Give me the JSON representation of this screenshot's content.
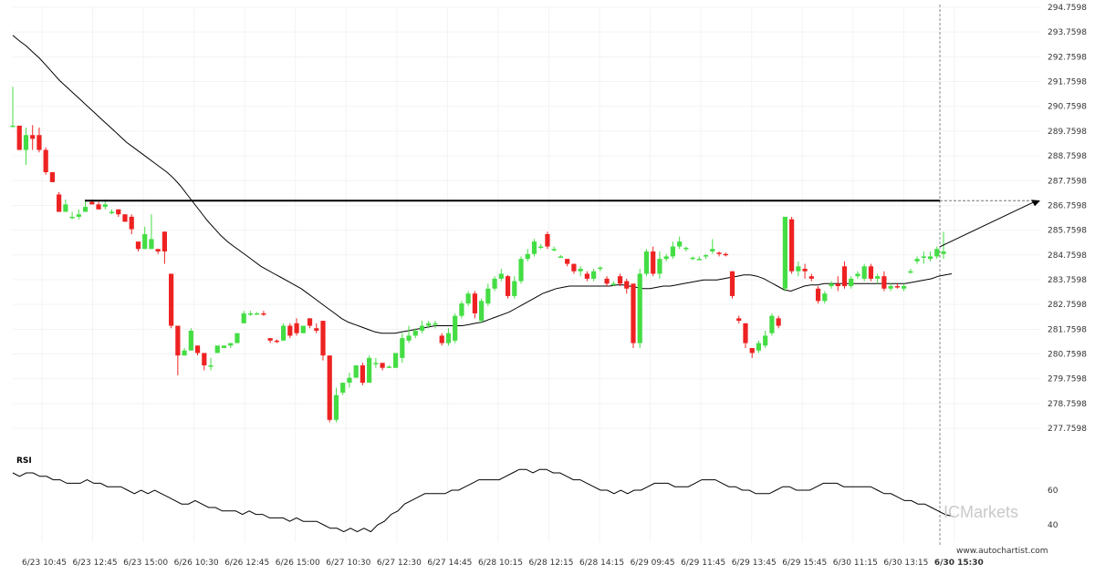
{
  "watermark": "ICMarkets",
  "website": "www.autochartist.com",
  "chart_data": {
    "type": "candlestick",
    "y_ticks": [
      "294.7598",
      "293.7598",
      "292.7598",
      "291.7598",
      "290.7598",
      "289.7598",
      "288.7598",
      "287.7598",
      "286.7598",
      "285.7598",
      "284.7598",
      "283.7598",
      "282.7598",
      "281.7598",
      "280.7598",
      "279.7598",
      "278.7598",
      "277.7598"
    ],
    "ylim": [
      277.1,
      294.76
    ],
    "x_ticks": [
      "6/23 10:45",
      "6/23 12:45",
      "6/23 15:00",
      "6/26 10:30",
      "6/26 12:45",
      "6/26 15:00",
      "6/27 10:30",
      "6/27 12:30",
      "6/27 14:45",
      "6/28 10:15",
      "6/28 12:15",
      "6/28 14:15",
      "6/29 09:45",
      "6/29 11:45",
      "6/29 13:45",
      "6/29 15:45",
      "6/30 11:15",
      "6/30 13:15",
      "6/30 15:30"
    ],
    "resistance_level": 286.95,
    "projection": {
      "from": 285.09,
      "to": 286.95
    },
    "candles": [
      [
        289.98,
        291.55,
        289.98,
        289.98
      ],
      [
        289.98,
        289.9,
        289.0,
        289.0
      ],
      [
        289.0,
        289.9,
        288.4,
        289.6
      ],
      [
        289.6,
        290.0,
        289.0,
        289.45
      ],
      [
        289.6,
        289.9,
        288.9,
        289.0
      ],
      [
        289.0,
        289.1,
        288.0,
        288.1
      ],
      [
        288.1,
        288.1,
        287.7,
        287.7
      ],
      [
        287.2,
        287.3,
        286.5,
        286.5
      ],
      [
        286.5,
        287.0,
        286.5,
        286.8
      ],
      [
        286.3,
        286.5,
        286.2,
        286.3
      ],
      [
        286.3,
        286.6,
        286.2,
        286.4
      ],
      [
        286.5,
        287.0,
        286.5,
        286.7
      ],
      [
        286.9,
        287.0,
        286.8,
        286.8
      ],
      [
        286.8,
        286.9,
        286.6,
        286.6
      ],
      [
        286.7,
        287.0,
        286.6,
        286.8
      ],
      [
        286.5,
        286.6,
        286.4,
        286.5
      ],
      [
        286.6,
        286.6,
        286.3,
        286.4
      ],
      [
        286.4,
        286.4,
        286.1,
        286.1
      ],
      [
        286.3,
        286.4,
        285.6,
        285.8
      ],
      [
        285.3,
        285.3,
        284.9,
        285.0
      ],
      [
        285.0,
        285.9,
        285.0,
        285.6
      ],
      [
        285.0,
        286.4,
        285.0,
        285.4
      ],
      [
        285.0,
        285.0,
        284.8,
        284.9
      ],
      [
        285.7,
        285.7,
        284.4,
        284.9
      ],
      [
        284.0,
        284.0,
        281.8,
        281.9
      ],
      [
        281.9,
        281.9,
        279.9,
        280.7
      ],
      [
        280.7,
        281.0,
        280.7,
        280.9
      ],
      [
        280.9,
        281.8,
        280.9,
        281.7
      ],
      [
        281.1,
        281.1,
        280.7,
        280.8
      ],
      [
        280.8,
        280.8,
        280.1,
        280.3
      ],
      [
        280.3,
        280.6,
        280.1,
        280.3
      ],
      [
        280.8,
        281.1,
        280.8,
        281.1
      ],
      [
        281.0,
        281.1,
        281.0,
        281.1
      ],
      [
        281.1,
        281.2,
        281.0,
        281.2
      ],
      [
        281.2,
        281.6,
        281.2,
        281.6
      ],
      [
        282.0,
        282.5,
        282.0,
        282.4
      ],
      [
        282.4,
        282.5,
        282.3,
        282.4
      ],
      [
        282.4,
        282.45,
        282.35,
        282.4
      ],
      [
        282.4,
        282.5,
        282.3,
        282.35
      ],
      [
        281.4,
        281.4,
        281.2,
        281.3
      ],
      [
        281.3,
        281.35,
        281.2,
        281.25
      ],
      [
        281.3,
        282.0,
        281.3,
        281.9
      ],
      [
        281.9,
        282.0,
        281.4,
        281.5
      ],
      [
        282.0,
        282.2,
        281.5,
        281.6
      ],
      [
        281.6,
        281.9,
        281.6,
        281.9
      ],
      [
        282.2,
        282.2,
        281.8,
        281.9
      ],
      [
        281.8,
        282.0,
        281.6,
        281.7
      ],
      [
        282.1,
        282.1,
        280.5,
        280.7
      ],
      [
        280.7,
        280.7,
        278.0,
        278.1
      ],
      [
        278.1,
        279.4,
        278.0,
        279.1
      ],
      [
        279.2,
        279.6,
        279.1,
        279.6
      ],
      [
        279.6,
        280.0,
        279.4,
        279.8
      ],
      [
        279.8,
        280.3,
        279.8,
        280.3
      ],
      [
        280.3,
        280.4,
        279.5,
        279.6
      ],
      [
        279.6,
        280.7,
        279.6,
        280.6
      ],
      [
        280.4,
        280.6,
        280.2,
        280.4
      ],
      [
        280.4,
        280.4,
        280.1,
        280.2
      ],
      [
        280.2,
        280.3,
        280.2,
        280.25
      ],
      [
        280.2,
        280.8,
        280.2,
        280.8
      ],
      [
        280.6,
        281.6,
        280.4,
        281.4
      ],
      [
        281.3,
        281.9,
        281.2,
        281.5
      ],
      [
        281.5,
        281.8,
        281.4,
        281.7
      ],
      [
        281.7,
        282.1,
        281.6,
        281.9
      ],
      [
        281.9,
        282.1,
        281.8,
        282.0
      ],
      [
        282.0,
        282.1,
        281.8,
        282.0
      ],
      [
        281.5,
        281.6,
        281.1,
        281.2
      ],
      [
        281.2,
        281.8,
        281.1,
        281.6
      ],
      [
        281.3,
        282.4,
        281.2,
        282.3
      ],
      [
        282.3,
        282.9,
        282.2,
        282.8
      ],
      [
        282.8,
        283.3,
        282.7,
        283.2
      ],
      [
        283.2,
        283.3,
        282.2,
        282.4
      ],
      [
        282.1,
        283.0,
        282.0,
        282.9
      ],
      [
        282.8,
        283.6,
        282.7,
        283.4
      ],
      [
        283.4,
        283.9,
        283.3,
        283.8
      ],
      [
        283.8,
        284.2,
        283.7,
        284.0
      ],
      [
        283.9,
        283.95,
        283.0,
        283.1
      ],
      [
        283.1,
        283.9,
        283.0,
        283.7
      ],
      [
        283.7,
        284.7,
        283.6,
        284.6
      ],
      [
        284.6,
        285.0,
        284.5,
        284.8
      ],
      [
        284.8,
        285.4,
        284.7,
        285.3
      ],
      [
        285.1,
        285.2,
        285.0,
        285.1
      ],
      [
        285.6,
        285.7,
        285.0,
        285.1
      ],
      [
        285.0,
        285.1,
        284.9,
        285.0
      ],
      [
        284.7,
        284.75,
        284.65,
        284.7
      ],
      [
        284.6,
        284.6,
        284.3,
        284.4
      ],
      [
        284.4,
        284.4,
        284.0,
        284.1
      ],
      [
        284.1,
        284.3,
        283.9,
        284.2
      ],
      [
        284.0,
        284.1,
        283.7,
        283.8
      ],
      [
        283.8,
        284.2,
        283.7,
        284.1
      ],
      [
        284.2,
        284.3,
        284.1,
        284.25
      ],
      [
        283.8,
        283.9,
        283.5,
        283.6
      ],
      [
        283.6,
        283.7,
        283.5,
        283.6
      ],
      [
        283.9,
        284.0,
        283.5,
        283.6
      ],
      [
        283.7,
        283.8,
        283.2,
        283.4
      ],
      [
        283.6,
        283.6,
        281.0,
        281.2
      ],
      [
        281.2,
        284.2,
        281.0,
        284.0
      ],
      [
        284.0,
        285.0,
        283.9,
        284.9
      ],
      [
        284.9,
        285.1,
        283.9,
        284.0
      ],
      [
        284.0,
        284.9,
        283.8,
        284.6
      ],
      [
        284.6,
        284.8,
        284.5,
        284.7
      ],
      [
        284.7,
        285.3,
        284.6,
        285.1
      ],
      [
        285.1,
        285.5,
        285.0,
        285.3
      ],
      [
        285.0,
        285.1,
        284.9,
        285.05
      ],
      [
        284.6,
        284.7,
        284.55,
        284.65
      ],
      [
        284.6,
        284.7,
        284.55,
        284.6
      ],
      [
        284.7,
        284.8,
        284.6,
        284.75
      ],
      [
        284.9,
        285.4,
        284.8,
        285.0
      ],
      [
        284.85,
        284.9,
        284.7,
        284.8
      ],
      [
        284.8,
        284.85,
        284.7,
        284.75
      ],
      [
        284.1,
        284.1,
        283.0,
        283.1
      ],
      [
        282.2,
        282.3,
        282.0,
        282.1
      ],
      [
        282.0,
        282.0,
        281.0,
        281.2
      ],
      [
        281.0,
        281.0,
        280.6,
        280.8
      ],
      [
        280.9,
        281.3,
        280.8,
        281.2
      ],
      [
        281.1,
        281.7,
        281.0,
        281.5
      ],
      [
        281.6,
        282.4,
        281.5,
        282.3
      ],
      [
        282.2,
        282.3,
        281.8,
        281.9
      ],
      [
        283.4,
        286.3,
        283.3,
        286.3
      ],
      [
        286.2,
        286.3,
        284.0,
        284.1
      ],
      [
        284.1,
        284.5,
        283.9,
        284.3
      ],
      [
        284.2,
        284.4,
        283.8,
        284.1
      ],
      [
        283.9,
        284.0,
        283.7,
        283.8
      ],
      [
        283.4,
        283.5,
        282.8,
        282.9
      ],
      [
        282.9,
        283.3,
        282.8,
        283.2
      ],
      [
        283.5,
        283.7,
        283.4,
        283.6
      ],
      [
        283.6,
        283.9,
        283.3,
        283.5
      ],
      [
        284.3,
        284.5,
        283.4,
        283.5
      ],
      [
        283.5,
        283.9,
        283.4,
        283.8
      ],
      [
        283.9,
        284.1,
        283.8,
        284.0
      ],
      [
        283.8,
        284.4,
        283.7,
        284.3
      ],
      [
        284.3,
        284.4,
        283.7,
        283.8
      ],
      [
        283.8,
        284.0,
        283.6,
        283.9
      ],
      [
        283.9,
        284.1,
        283.3,
        283.4
      ],
      [
        283.4,
        283.6,
        283.3,
        283.5
      ],
      [
        283.5,
        283.6,
        283.4,
        283.45
      ],
      [
        283.4,
        283.6,
        283.3,
        283.5
      ],
      [
        284.1,
        284.2,
        284.0,
        284.1
      ],
      [
        284.5,
        284.7,
        284.4,
        284.6
      ],
      [
        284.7,
        284.9,
        284.4,
        284.7
      ],
      [
        284.6,
        284.9,
        284.5,
        284.7
      ],
      [
        284.7,
        285.1,
        284.6,
        285.0
      ],
      [
        284.8,
        285.7,
        284.6,
        284.9
      ]
    ],
    "sma": [
      293.63,
      293.4,
      293.2,
      292.95,
      292.7,
      292.4,
      292.1,
      291.8,
      291.55,
      291.3,
      291.05,
      290.8,
      290.55,
      290.3,
      290.05,
      289.8,
      289.55,
      289.3,
      289.1,
      288.9,
      288.7,
      288.5,
      288.3,
      288.1,
      287.85,
      287.55,
      287.2,
      286.85,
      286.5,
      286.15,
      285.85,
      285.55,
      285.3,
      285.1,
      284.9,
      284.7,
      284.5,
      284.3,
      284.15,
      284.0,
      283.85,
      283.7,
      283.55,
      283.4,
      283.2,
      283.0,
      282.8,
      282.6,
      282.4,
      282.2,
      282.05,
      281.95,
      281.85,
      281.75,
      281.65,
      281.6,
      281.6,
      281.6,
      281.65,
      281.7,
      281.75,
      281.8,
      281.85,
      281.9,
      281.9,
      281.9,
      281.9,
      281.9,
      281.95,
      282.0,
      282.05,
      282.15,
      282.25,
      282.35,
      282.45,
      282.6,
      282.75,
      282.9,
      283.05,
      283.2,
      283.3,
      283.4,
      283.45,
      283.5,
      283.5,
      283.5,
      283.5,
      283.5,
      283.5,
      283.5,
      283.55,
      283.55,
      283.5,
      283.45,
      283.4,
      283.4,
      283.45,
      283.5,
      283.5,
      283.55,
      283.6,
      283.65,
      283.7,
      283.75,
      283.75,
      283.75,
      283.8,
      283.85,
      283.9,
      283.95,
      283.95,
      283.9,
      283.8,
      283.65,
      283.5,
      283.35,
      283.3,
      283.4,
      283.5,
      283.55,
      283.55,
      283.6,
      283.6,
      283.6,
      283.6,
      283.6,
      283.6,
      283.6,
      283.6,
      283.6,
      283.6,
      283.6,
      283.6,
      283.6,
      283.65,
      283.7,
      283.75,
      283.8,
      283.9,
      283.95,
      284.0
    ],
    "rsi": {
      "label": "RSI",
      "ticks": [
        "60",
        "40"
      ],
      "ylim": [
        30,
        80
      ],
      "values": [
        70,
        68,
        70,
        70,
        68,
        68,
        66,
        66,
        64,
        64,
        64,
        66,
        64,
        64,
        62,
        62,
        62,
        60,
        58,
        60,
        58,
        60,
        58,
        56,
        54,
        52,
        52,
        54,
        52,
        50,
        50,
        48,
        48,
        48,
        46,
        48,
        46,
        46,
        44,
        44,
        44,
        42,
        44,
        42,
        42,
        42,
        40,
        38,
        38,
        36,
        38,
        36,
        38,
        36,
        40,
        42,
        46,
        48,
        52,
        54,
        56,
        58,
        58,
        58,
        58,
        60,
        60,
        62,
        64,
        66,
        66,
        66,
        66,
        68,
        70,
        72,
        72,
        70,
        72,
        72,
        70,
        70,
        68,
        66,
        66,
        64,
        62,
        60,
        60,
        58,
        60,
        58,
        60,
        60,
        62,
        64,
        64,
        64,
        62,
        62,
        62,
        64,
        66,
        66,
        66,
        64,
        62,
        62,
        60,
        60,
        58,
        58,
        58,
        60,
        62,
        62,
        60,
        60,
        60,
        62,
        64,
        64,
        64,
        62,
        62,
        62,
        62,
        62,
        60,
        58,
        58,
        56,
        54,
        54,
        52,
        52,
        50,
        48,
        46,
        45
      ]
    }
  }
}
